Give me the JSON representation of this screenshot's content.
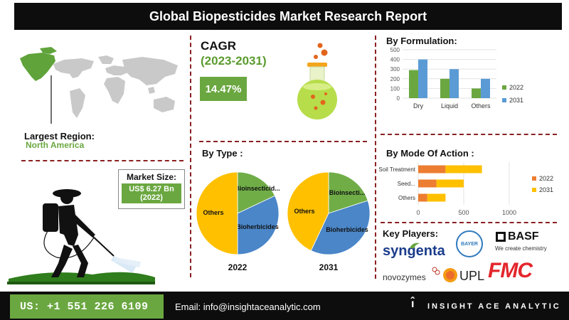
{
  "title": "Global Biopesticides Market Research Report",
  "region": {
    "label": "Largest Region:",
    "value": "North America"
  },
  "market_size": {
    "label": "Market Size:",
    "value": "US$ 6.27 Bn",
    "year": "(2022)"
  },
  "cagr": {
    "title": "CAGR",
    "period": "(2023-2031)",
    "value": "14.47%"
  },
  "sections": {
    "by_type": "By Type :",
    "by_formulation": "By Formulation:",
    "by_mode": "By Mode Of Action :",
    "key_players": "Key Players:"
  },
  "key_players": {
    "syngenta": "syngenta",
    "bayer": "BAYER",
    "basf": "BASF",
    "basf_tagline": "We create chemistry",
    "novozymes": "novozymes",
    "upl": "UPL",
    "fmc": "FMC"
  },
  "footer": {
    "phone": "US: +1 551 226 6109",
    "email": "Email: info@insightaceanalytic.com",
    "brand": "INSIGHT ACE ANALYTIC"
  },
  "colors": {
    "green": "#6aa740",
    "blue": "#5b9bd5",
    "orange": "#ed7d31",
    "yellow": "#ffc000",
    "pie_green": "#70ad47",
    "pie_blue": "#4a86c8",
    "title_green": "#5b9b2e",
    "divider": "#8b2020"
  },
  "chart_data": [
    {
      "type": "bar",
      "categories": [
        "Dry",
        "Liquid",
        "Others"
      ],
      "series": [
        {
          "name": "2022",
          "values": [
            290,
            200,
            100
          ],
          "color": "#6aa740"
        },
        {
          "name": "2031",
          "values": [
            400,
            300,
            200
          ],
          "color": "#5b9bd5"
        }
      ],
      "ylim": [
        0,
        500
      ],
      "yticks": [
        0,
        100,
        200,
        300,
        400,
        500
      ],
      "legend": "right",
      "grid": true
    },
    {
      "type": "bar",
      "orientation": "horizontal",
      "stacked": true,
      "categories": [
        "Soil Treatment",
        "Seed...",
        "Others"
      ],
      "series": [
        {
          "name": "2022",
          "values": [
            300,
            200,
            100
          ],
          "color": "#ed7d31"
        },
        {
          "name": "2031",
          "values": [
            400,
            300,
            200
          ],
          "color": "#ffc000"
        }
      ],
      "xlim": [
        0,
        1000
      ],
      "xticks": [
        0,
        500,
        1000
      ],
      "legend": "right",
      "grid": true
    },
    {
      "type": "pie",
      "year_label": "2022",
      "slices": [
        {
          "label": "Bioinsecticid...",
          "value": 18,
          "color": "#70ad47"
        },
        {
          "label": "Bioherbicides",
          "value": 32,
          "color": "#4a86c8"
        },
        {
          "label": "Others",
          "value": 50,
          "color": "#ffc000"
        }
      ]
    },
    {
      "type": "pie",
      "year_label": "2031",
      "slices": [
        {
          "label": "Bioinsecti...",
          "value": 20,
          "color": "#70ad47"
        },
        {
          "label": "Bioherbicides",
          "value": 37,
          "color": "#4a86c8"
        },
        {
          "label": "Others",
          "value": 43,
          "color": "#ffc000"
        }
      ]
    }
  ]
}
